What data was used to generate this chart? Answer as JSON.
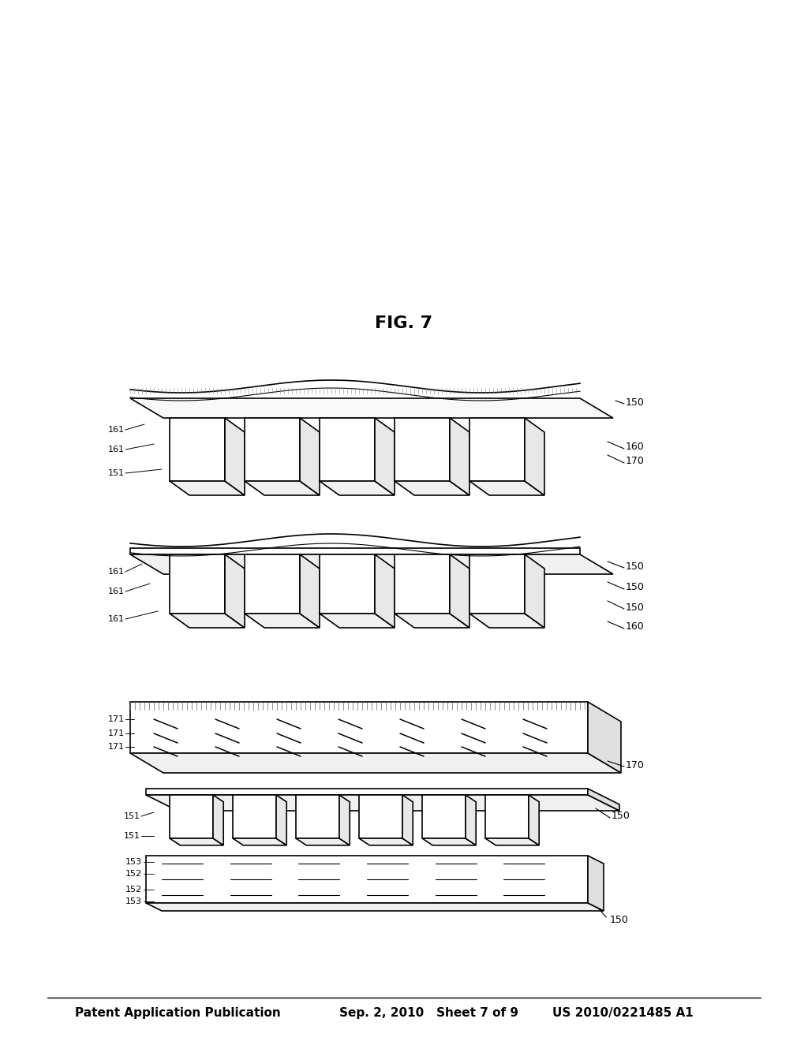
{
  "header_left": "Patent Application Publication",
  "header_mid": "Sep. 2, 2010   Sheet 7 of 9",
  "header_right": "US 2010/0221485 A1",
  "figure_label": "FIG. 7",
  "bg_color": "#ffffff",
  "line_color": "#000000",
  "header_fontsize": 11,
  "fig_label_fontsize": 16
}
